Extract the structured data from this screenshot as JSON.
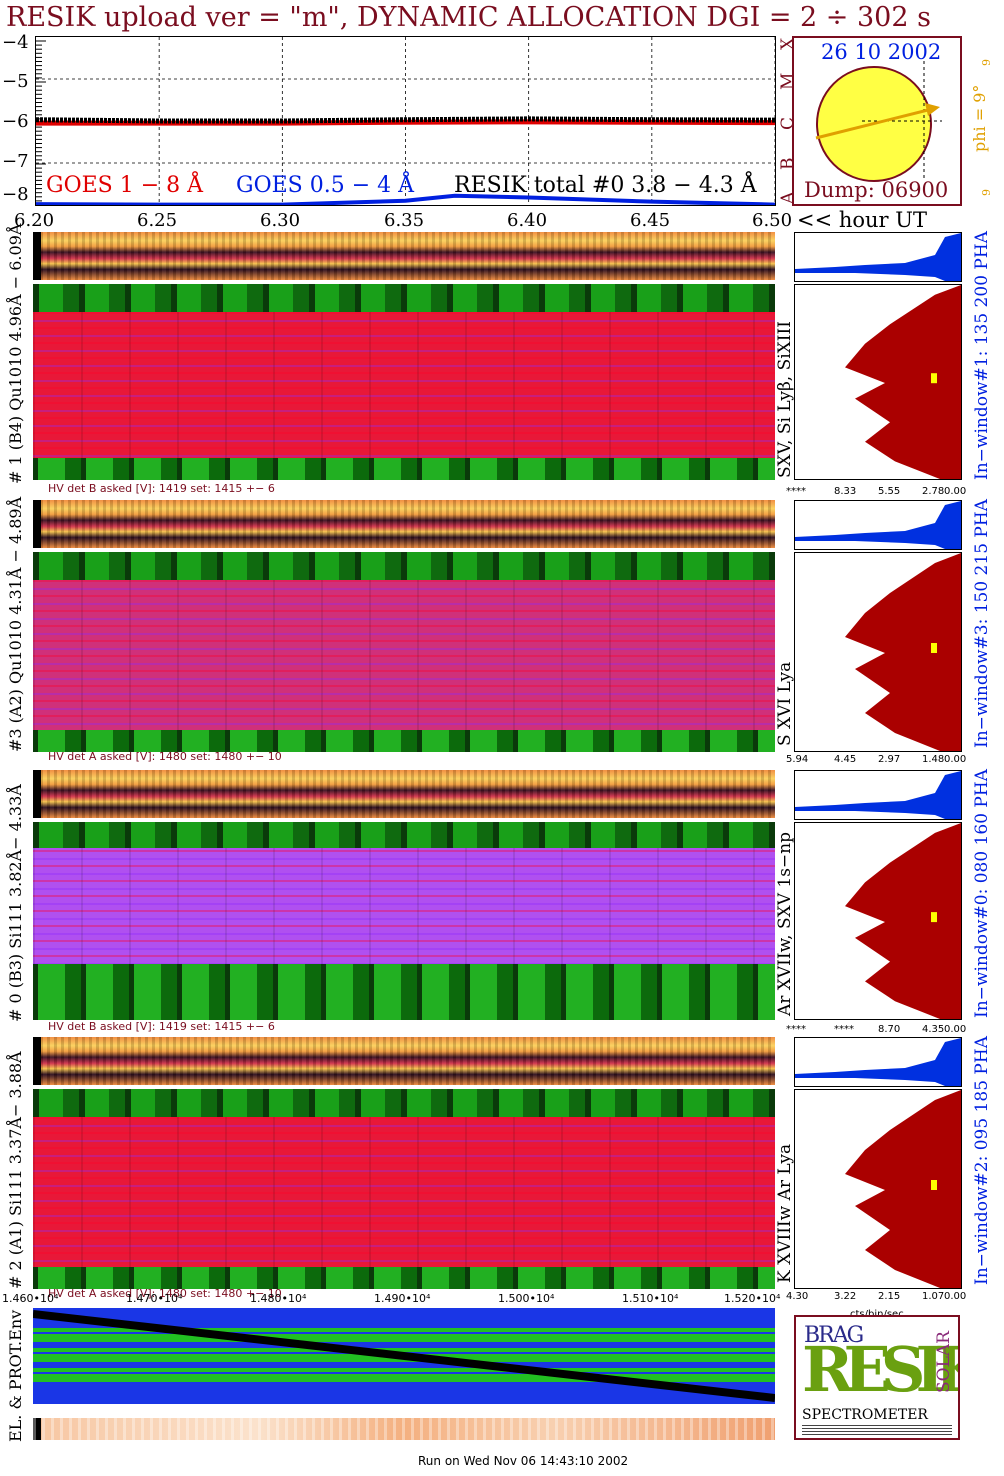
{
  "title": "RESIK upload ver = \"m\", DYNAMIC ALLOCATION  DGI =   2 ÷ 302 s",
  "top_panel": {
    "y_ticks": [
      "−4",
      "−5",
      "−6",
      "−7",
      "−8"
    ],
    "x_ticks": [
      "6.20",
      "6.25",
      "6.30",
      "6.35",
      "6.40",
      "6.45",
      "6.50"
    ],
    "x_unit": "<< hour UT",
    "legend": {
      "goes_long": "GOES 1 − 8 Å",
      "goes_short": "GOES 0.5 − 4 Å",
      "resik_total": "RESIK total #0  3.8 − 4.3 Å"
    },
    "class_letters": [
      "A",
      "B",
      "C",
      "M",
      "X"
    ]
  },
  "sun_panel": {
    "date": "26 10 2002",
    "dump": "Dump: 06900",
    "phi_label": "phi =  9°",
    "corner_a": "9",
    "corner_b": "9"
  },
  "channels": [
    {
      "left_label": "# 1 (B4) Qu1010 4.96Å − 6.09Å",
      "lines_label": "SXV, Si Lyβ, SiXIII",
      "window_label": "In−window#1:  135 200 PHA",
      "hv_text": "HV det B asked [V]:  1419 set:  1415 +−    6",
      "scale_ticks": [
        "****",
        "8.33",
        "5.55",
        "2.78",
        "0.00"
      ]
    },
    {
      "left_label": "#3 (A2) Qu1010  4.31Å − 4.89Å",
      "lines_label": "S XVI Lya",
      "window_label": "In−window#3:  150 215 PHA",
      "hv_text": "HV det A asked [V]:  1480 set:  1480 +−    10",
      "scale_ticks": [
        "5.94",
        "4.45",
        "2.97",
        "1.48",
        "0.00"
      ]
    },
    {
      "left_label": "# 0 (B3) Si111  3.82Å− 4.33Å",
      "lines_label": "Ar XVIIw, SXV 1s−np",
      "window_label": "In−window#0:  080 160 PHA",
      "hv_text": "HV det B asked [V]:  1419 set:  1415 +−    6",
      "scale_ticks": [
        "****",
        "****",
        "8.70",
        "4.35",
        "0.00"
      ]
    },
    {
      "left_label": "# 2 (A1) Si111  3.37Å− 3.88Å",
      "lines_label": "K XVIIIw  Ar Lya",
      "window_label": "In−window#2:  095 185 PHA",
      "hv_text": "HV det A asked [V]:  1480 set:  1480 +−    10",
      "scale_ticks": [
        "4.30",
        "3.22",
        "2.15",
        "1.07",
        "0.00"
      ]
    }
  ],
  "bottom_axis": {
    "ticks": [
      "1.460•10⁴",
      "1.470•10⁴",
      "1.480•10⁴",
      "1.490•10⁴",
      "1.500•10⁴",
      "1.510•10⁴",
      "1.520•10⁴"
    ],
    "unit": "cts/bin/sec"
  },
  "env_label": "EL. & PROT.Env",
  "logo": {
    "big": "RESIK",
    "letters_top": "BRAG",
    "letters_side": "SOLAR",
    "caption": "SPECTROMETER"
  },
  "footer": "Run on Wed Nov 06 14:43:10 2002",
  "colors": {
    "title": "#7a0d1f",
    "goes_long": "#e00000",
    "goes_short": "#0020e0",
    "resik": "#000000",
    "sun": "#ffff44",
    "sun_arrow": "#e0a000",
    "histogram_fill": "#aa0000",
    "histogram_top": "#0030e0"
  },
  "chart_data": [
    {
      "type": "line",
      "xlabel": "<< hour UT",
      "ylabel": "",
      "xlim": [
        6.2,
        6.5
      ],
      "ylim": [
        -8,
        -4
      ],
      "series": [
        {
          "name": "GOES 1 − 8 Å",
          "x": [
            6.2,
            6.25,
            6.3,
            6.35,
            6.4,
            6.45,
            6.5
          ],
          "values": [
            -6.05,
            -6.05,
            -6.05,
            -6.03,
            -6.02,
            -6.03,
            -6.04
          ]
        },
        {
          "name": "GOES 0.5 − 4 Å",
          "x": [
            6.2,
            6.25,
            6.3,
            6.35,
            6.37,
            6.4,
            6.45,
            6.5
          ],
          "values": [
            -7.98,
            -7.99,
            -7.99,
            -7.9,
            -7.78,
            -7.82,
            -7.92,
            -7.99
          ]
        },
        {
          "name": "RESIK total #0  3.8 − 4.3 Å",
          "x": [
            6.2,
            6.25,
            6.3,
            6.35,
            6.4,
            6.45,
            6.5
          ],
          "values": [
            -5.97,
            -6.0,
            -6.0,
            -5.97,
            -5.95,
            -5.97,
            -5.98
          ]
        }
      ]
    }
  ]
}
